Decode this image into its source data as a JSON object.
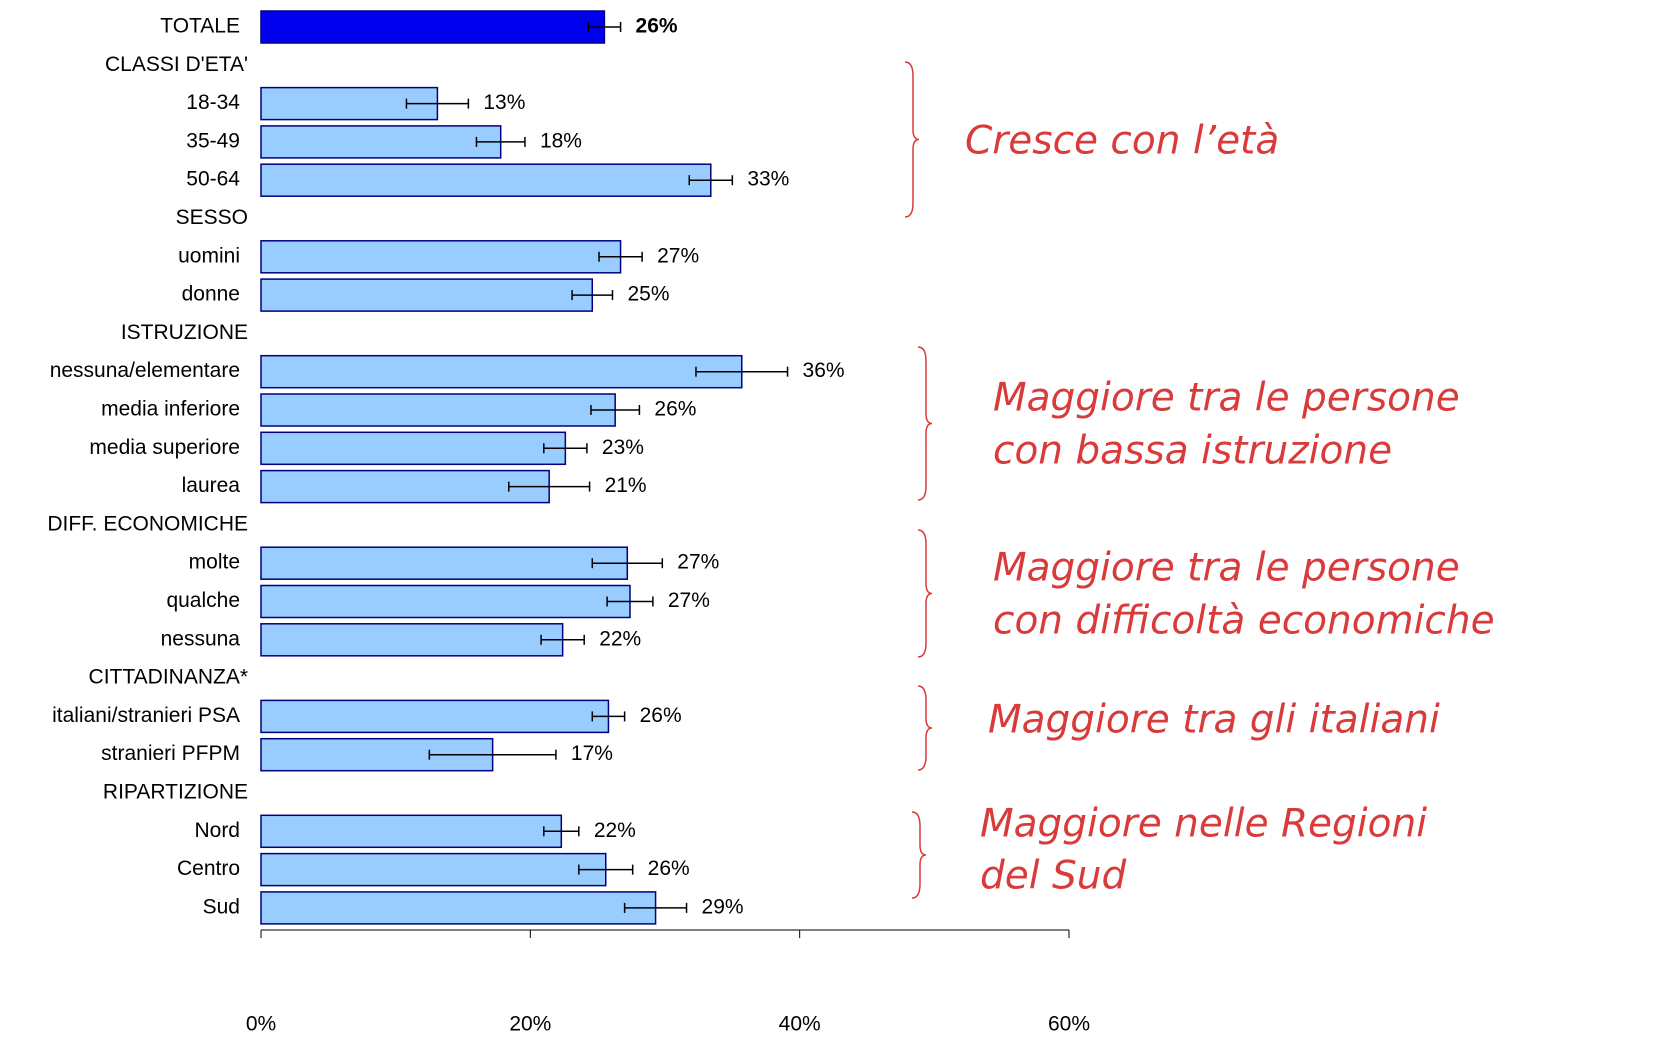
{
  "chart_data": {
    "type": "bar",
    "orientation": "horizontal",
    "categories": [
      "TOTALE",
      "CLASSI D'ETA'",
      "18-34",
      "35-49",
      "50-64",
      "SESSO",
      "uomini",
      "donne",
      "ISTRUZIONE",
      "nessuna/elementare",
      "media inferiore",
      "media superiore",
      "laurea",
      "DIFF. ECONOMICHE",
      "molte",
      "qualche",
      "nessuna",
      "CITTADINANZA*",
      "italiani/stranieri PSA",
      "stranieri PFPM",
      "RIPARTIZIONE",
      "Nord",
      "Centro",
      "Sud"
    ],
    "values": [
      25.5,
      null,
      13.1,
      17.8,
      33.4,
      null,
      26.7,
      24.6,
      null,
      35.7,
      26.3,
      22.6,
      21.4,
      null,
      27.2,
      27.4,
      22.4,
      null,
      25.8,
      17.2,
      null,
      22.3,
      25.6,
      29.3
    ],
    "errors": [
      1.2,
      null,
      2.3,
      1.8,
      1.6,
      null,
      1.6,
      1.5,
      null,
      3.4,
      1.8,
      1.6,
      3.0,
      null,
      2.6,
      1.7,
      1.6,
      null,
      1.2,
      4.7,
      null,
      1.3,
      2.0,
      2.3
    ],
    "value_labels": [
      "26%",
      null,
      "13%",
      "18%",
      "33%",
      null,
      "27%",
      "25%",
      null,
      "36%",
      "26%",
      "23%",
      "21%",
      null,
      "27%",
      "27%",
      "22%",
      null,
      "26%",
      "17%",
      null,
      "22%",
      "26%",
      "29%"
    ],
    "colors": [
      "#0000ee",
      null,
      "#99ccff",
      "#99ccff",
      "#99ccff",
      null,
      "#99ccff",
      "#99ccff",
      null,
      "#99ccff",
      "#99ccff",
      "#99ccff",
      "#99ccff",
      null,
      "#99ccff",
      "#99ccff",
      "#99ccff",
      null,
      "#99ccff",
      "#99ccff",
      null,
      "#99ccff",
      "#99ccff",
      "#99ccff"
    ],
    "edge_color": "#000080",
    "xlim": [
      0,
      60
    ],
    "xticks": [
      {
        "value": 0,
        "label": "0%"
      },
      {
        "value": 20,
        "label": "20%"
      },
      {
        "value": 40,
        "label": "40%"
      },
      {
        "value": 60,
        "label": "60%"
      }
    ],
    "annotation_color": "#d93a3a",
    "annotations": [
      {
        "lines": [
          "Cresce con l’età"
        ]
      },
      {
        "lines": [
          "Maggiore tra le persone",
          "con bassa istruzione"
        ]
      },
      {
        "lines": [
          "Maggiore tra le persone",
          "con difficoltà economiche"
        ]
      },
      {
        "lines": [
          "Maggiore tra gli italiani"
        ]
      },
      {
        "lines": [
          "Maggiore nelle Regioni",
          "del Sud"
        ]
      }
    ]
  }
}
